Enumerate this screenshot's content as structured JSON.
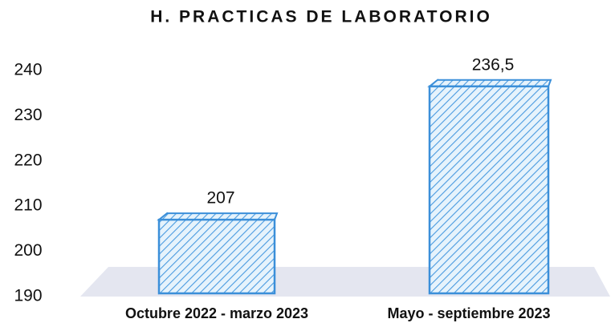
{
  "chart_data": {
    "type": "bar3d",
    "title": "H. PRACTICAS DE LABORATORIO",
    "categories": [
      "Octubre 2022 - marzo 2023",
      "Mayo - septiembre 2023"
    ],
    "values": [
      207,
      236.5
    ],
    "value_labels": [
      "207",
      "236,5"
    ],
    "color": "#3b8fd9",
    "ylim": [
      190,
      240
    ],
    "yticks": [
      190,
      200,
      210,
      220,
      230,
      240
    ],
    "grid": false
  }
}
